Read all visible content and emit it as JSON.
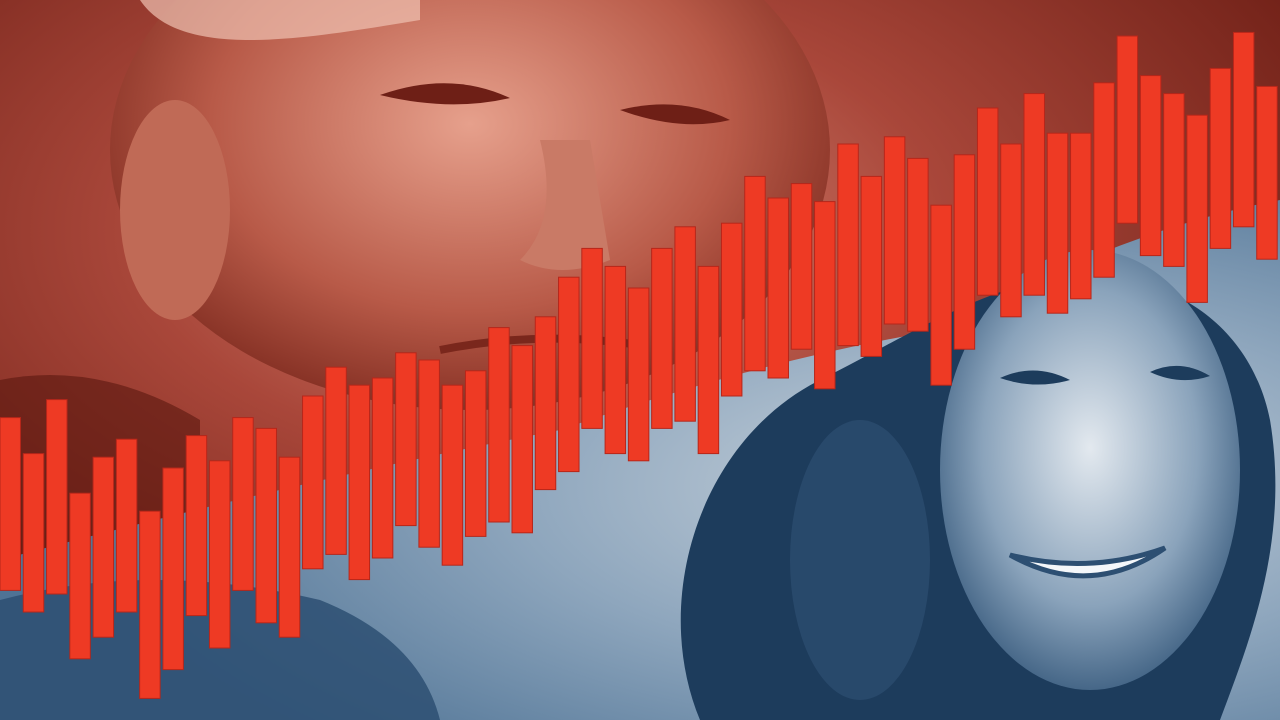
{
  "palette": {
    "red_duotone_dark": "#6e1f16",
    "red_duotone_mid": "#a9473a",
    "red_duotone_light": "#d98c7a",
    "blue_duotone_dark": "#1d3c5c",
    "blue_duotone_mid": "#4f7395",
    "blue_duotone_light": "#c9d3dc",
    "bar_fill": "#ee3a24",
    "bar_edge": "#b7261a"
  },
  "bars": {
    "count": 55,
    "levels": [
      0.3,
      0.26,
      0.31,
      0.2,
      0.24,
      0.27,
      0.16,
      0.21,
      0.27,
      0.23,
      0.3,
      0.27,
      0.24,
      0.33,
      0.36,
      0.33,
      0.35,
      0.39,
      0.37,
      0.34,
      0.37,
      0.41,
      0.39,
      0.44,
      0.48,
      0.53,
      0.5,
      0.48,
      0.53,
      0.55,
      0.5,
      0.57,
      0.62,
      0.6,
      0.63,
      0.59,
      0.66,
      0.63,
      0.68,
      0.66,
      0.59,
      0.65,
      0.72,
      0.68,
      0.73,
      0.69,
      0.7,
      0.75,
      0.82,
      0.77,
      0.75,
      0.71,
      0.78,
      0.82,
      0.76
    ],
    "heights": [
      0.24,
      0.22,
      0.27,
      0.23,
      0.25,
      0.24,
      0.26,
      0.28,
      0.25,
      0.26,
      0.24,
      0.27,
      0.25,
      0.24,
      0.26,
      0.27,
      0.25,
      0.24,
      0.26,
      0.25,
      0.23,
      0.27,
      0.26,
      0.24,
      0.27,
      0.25,
      0.26,
      0.24,
      0.25,
      0.27,
      0.26,
      0.24,
      0.27,
      0.25,
      0.23,
      0.26,
      0.28,
      0.25,
      0.26,
      0.24,
      0.25,
      0.27,
      0.26,
      0.24,
      0.28,
      0.25,
      0.23,
      0.27,
      0.26,
      0.25,
      0.24,
      0.26,
      0.25,
      0.27,
      0.24
    ]
  },
  "portraits": {
    "top_left": "man-portrait-red-duotone",
    "bottom_right": "woman-portrait-blue-duotone"
  }
}
